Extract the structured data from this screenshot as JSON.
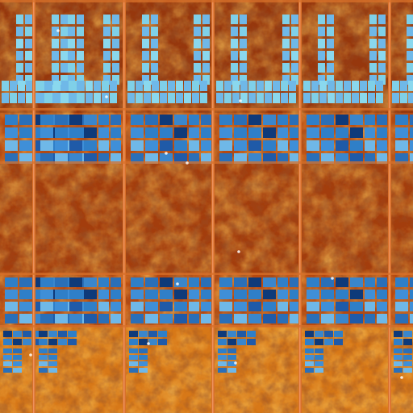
{
  "image": {
    "subject-icon": "silicon-die-icon",
    "palette": {
      "logic_dark": "#7a2a0c",
      "logic_mid": "#b8480f",
      "logic_bright": "#e07a1a",
      "logic_gold": "#f0a020",
      "street": "#d8702a",
      "street_hi": "#f5a070",
      "cache_dark": "#0e3a7a",
      "cache_mid": "#2f7fc8",
      "cache_light": "#6fb8e8",
      "cache_cyan": "#7fd0e8"
    }
  }
}
